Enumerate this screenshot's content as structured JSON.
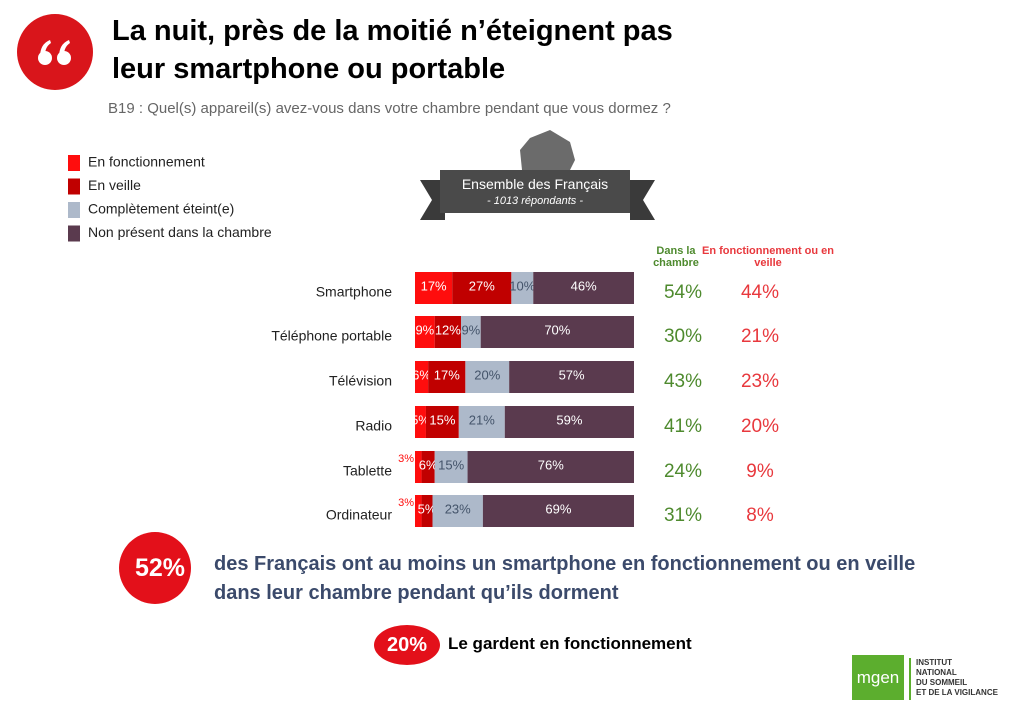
{
  "header": {
    "title_lines": [
      "La nuit, près de la moitié n’éteignent pas",
      "leur smartphone ou portable"
    ],
    "subtitle": "B19 : Quel(s) appareil(s) avez-vous dans votre chambre pendant que vous dormez ?"
  },
  "badge": {
    "title": "Ensemble des Français",
    "subtitle": "- 1013 répondants -"
  },
  "chart_data": {
    "type": "bar",
    "orientation": "horizontal",
    "stacked": true,
    "categories": [
      "Smartphone",
      "Téléphone portable",
      "Télévision",
      "Radio",
      "Tablette",
      "Ordinateur"
    ],
    "series": [
      {
        "name": "En fonctionnement",
        "color": "#ff0d0d",
        "label_color": "#ffffff",
        "values": [
          17,
          9,
          6,
          5,
          3,
          3
        ],
        "value_labels": [
          "17%",
          "9%",
          "6%",
          "5%",
          "3%",
          "3%"
        ]
      },
      {
        "name": "En veille",
        "color": "#c00000",
        "label_color": "#ffffff",
        "values": [
          27,
          12,
          17,
          15,
          6,
          5
        ],
        "value_labels": [
          "27%",
          "12%",
          "17%",
          "15%",
          "6%",
          "5%"
        ]
      },
      {
        "name": "Complètement éteint(e)",
        "color": "#adb9ca",
        "label_color": "#44546a",
        "values": [
          10,
          9,
          20,
          21,
          15,
          23
        ],
        "value_labels": [
          "10%",
          "9%",
          "20%",
          "21%",
          "15%",
          "23%"
        ]
      },
      {
        "name": "Non présent dans la chambre",
        "color": "#5a3a4e",
        "label_color": "#ffffff",
        "values": [
          46,
          70,
          57,
          59,
          76,
          69
        ],
        "value_labels": [
          "46%",
          "70%",
          "57%",
          "59%",
          "76%",
          "69%"
        ]
      }
    ],
    "columns": [
      {
        "name": "Dans la chambre",
        "color": "#4e8a2e",
        "values": [
          "54%",
          "30%",
          "43%",
          "41%",
          "24%",
          "31%"
        ]
      },
      {
        "name": "En fonctionnement ou en veille",
        "color": "#e8383d",
        "values": [
          "44%",
          "21%",
          "23%",
          "20%",
          "9%",
          "8%"
        ]
      }
    ]
  },
  "callouts": [
    {
      "label": "52%",
      "text": "des Français ont au moins un smartphone en fonctionnement ou en veille dans leur chambre pendant qu’ils dorment"
    },
    {
      "label": "20%",
      "text": "Le gardent en fonctionnement"
    }
  ],
  "logo": {
    "brand": "mgen",
    "lines": [
      "INSTITUT",
      "NATIONAL",
      "DU SOMMEIL",
      "ET DE LA VIGILANCE"
    ]
  }
}
